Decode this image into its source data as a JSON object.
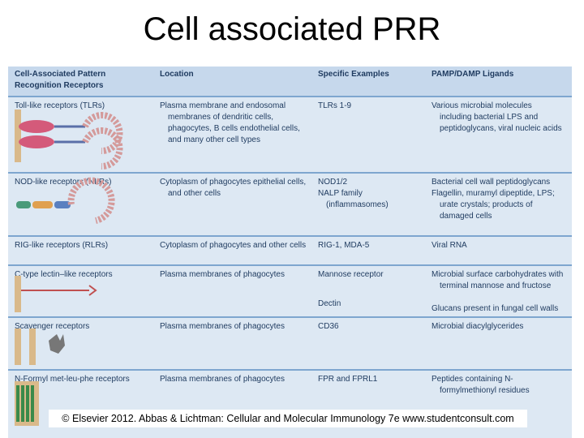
{
  "title": "Cell associated PRR",
  "table": {
    "headers": [
      "Cell-Associated Pattern Recognition Receptors",
      "Location",
      "Specific Examples",
      "PAMP/DAMP Ligands"
    ],
    "rows": [
      [
        [
          "Toll-like receptors (TLRs)"
        ],
        [
          "Plasma membrane and endosomal membranes of dendritic cells, phagocytes, B cells endothelial cells, and many other cell types"
        ],
        [
          "TLRs 1-9"
        ],
        [
          "Various microbial molecules including bacterial LPS and peptidoglycans, viral nucleic acids"
        ]
      ],
      [
        [
          "NOD-like receptors (NLRs)"
        ],
        [
          "Cytoplasm of phagocytes epithelial cells, and other cells"
        ],
        [
          "NOD1/2",
          "NALP family (inflammasomes)"
        ],
        [
          "Bacterial cell wall peptidoglycans",
          "Flagellin, muramyl dipeptide, LPS; urate crystals; products of damaged cells"
        ]
      ],
      [
        [
          "RIG-like receptors (RLRs)"
        ],
        [
          "Cytoplasm of phagocytes and other cells"
        ],
        [
          "RIG-1, MDA-5"
        ],
        [
          "Viral RNA"
        ]
      ],
      [
        [
          "C-type lectin–like receptors"
        ],
        [
          "Plasma membranes of phagocytes"
        ],
        [
          "Mannose receptor",
          "Dectin"
        ],
        [
          "Microbial surface carbohydrates with terminal mannose and fructose",
          "Glucans present in fungal cell walls"
        ]
      ],
      [
        [
          "Scavenger receptors"
        ],
        [
          "Plasma membranes of phagocytes"
        ],
        [
          "CD36"
        ],
        [
          "Microbial diacylglycerides"
        ]
      ],
      [
        [
          "N-Formyl met-leu-phe receptors"
        ],
        [
          "Plasma membranes of phagocytes"
        ],
        [
          "FPR and FPRL1"
        ],
        [
          "Peptides containing N-formylmethionyl residues"
        ]
      ]
    ]
  },
  "copyright": "© Elsevier 2012. Abbas & Lichtman: Cellular and Molecular Immunology 7e www.studentconsult.com"
}
